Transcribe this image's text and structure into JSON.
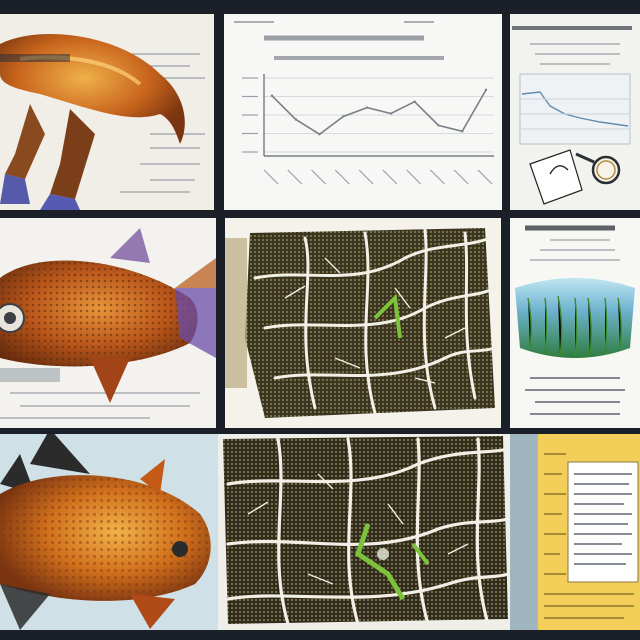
{
  "collage": {
    "tiles": [
      {
        "name": "fish-illustration-orange-top"
      },
      {
        "name": "line-chart-card"
      },
      {
        "name": "small-chart-with-magnifier"
      },
      {
        "name": "fish-illustration-orange-middle"
      },
      {
        "name": "leaf-vein-texture-middle"
      },
      {
        "name": "seaweed-infographic-card"
      },
      {
        "name": "fish-illustration-orange-bottom"
      },
      {
        "name": "leaf-vein-texture-bottom"
      },
      {
        "name": "yellow-notes-card"
      }
    ]
  },
  "colors": {
    "background": "#1b1f27",
    "fish_orange": "#c9641a",
    "fish_gold": "#e59a2a",
    "chart_line": "#7a8088",
    "leaf_dark": "#3a3520",
    "leaf_vein": "#f2f0e6",
    "leaf_green": "#7cc23a",
    "note_yellow": "#f3cf5a"
  },
  "chart_data": {
    "type": "line",
    "values": [
      5.4,
      4.6,
      4.1,
      4.7,
      5.0,
      4.8,
      5.2,
      4.4,
      4.2,
      5.6
    ],
    "ylim": [
      3.5,
      6
    ]
  }
}
